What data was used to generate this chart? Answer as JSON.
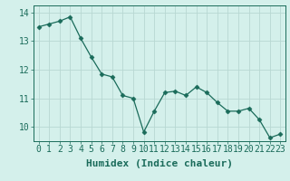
{
  "x": [
    0,
    1,
    2,
    3,
    4,
    5,
    6,
    7,
    8,
    9,
    10,
    11,
    12,
    13,
    14,
    15,
    16,
    17,
    18,
    19,
    20,
    21,
    22,
    23
  ],
  "y": [
    13.5,
    13.6,
    13.7,
    13.85,
    13.1,
    12.45,
    11.85,
    11.75,
    11.1,
    11.0,
    9.82,
    10.55,
    11.2,
    11.25,
    11.1,
    11.4,
    11.2,
    10.85,
    10.55,
    10.55,
    10.65,
    10.25,
    9.62,
    9.75
  ],
  "xlabel": "Humidex (Indice chaleur)",
  "xlim": [
    -0.5,
    23.5
  ],
  "ylim": [
    9.5,
    14.25
  ],
  "yticks": [
    10,
    11,
    12,
    13,
    14
  ],
  "xticks": [
    0,
    1,
    2,
    3,
    4,
    5,
    6,
    7,
    8,
    9,
    10,
    11,
    12,
    13,
    14,
    15,
    16,
    17,
    18,
    19,
    20,
    21,
    22,
    23
  ],
  "line_color": "#1a6b5a",
  "marker": "D",
  "marker_size": 2.5,
  "bg_color": "#d4f0eb",
  "grid_color": "#b8d8d2",
  "xlabel_fontsize": 8,
  "tick_fontsize": 7
}
